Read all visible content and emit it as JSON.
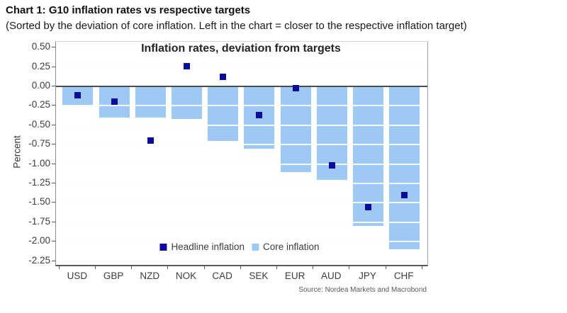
{
  "header": {
    "title": "Chart 1: G10 inflation rates vs respective targets",
    "subtitle": "(Sorted by the deviation of core inflation. Left in the chart = closer to the respective inflation target)"
  },
  "chart_data": {
    "type": "bar",
    "title": "Inflation rates, deviation from targets",
    "ylabel": "Percent",
    "xlabel": "",
    "categories": [
      "USD",
      "GBP",
      "NZD",
      "NOK",
      "CAD",
      "SEK",
      "EUR",
      "AUD",
      "JPY",
      "CHF"
    ],
    "series": [
      {
        "name": "Headline inflation",
        "type": "scatter",
        "marker": "square",
        "color": "#0c0c9c",
        "values": [
          -0.11,
          -0.2,
          -0.7,
          0.26,
          0.12,
          -0.37,
          -0.02,
          -1.02,
          -1.56,
          -1.4
        ]
      },
      {
        "name": "Core inflation",
        "type": "bar",
        "color": "#9dc9f4",
        "values": [
          -0.26,
          -0.4,
          -0.4,
          -0.42,
          -0.7,
          -0.8,
          -1.1,
          -1.2,
          -1.8,
          -2.1
        ]
      }
    ],
    "ylim": [
      -2.3,
      0.54
    ],
    "yticks": [
      0.5,
      0.25,
      0.0,
      -0.25,
      -0.5,
      -0.75,
      -1.0,
      -1.25,
      -1.5,
      -1.75,
      -2.0,
      -2.25
    ],
    "grid": true,
    "zero_line": true,
    "legend_position": "bottom-center-inside",
    "source": "Source: Nordea Markets and Macrobond"
  },
  "colors": {
    "grid": "#d9d9d9",
    "zero_line": "#4d4d4d",
    "axis_text": "#3d3d3d",
    "headline_marker": "#0c0c9c",
    "core_bar": "#9dc9f4"
  }
}
